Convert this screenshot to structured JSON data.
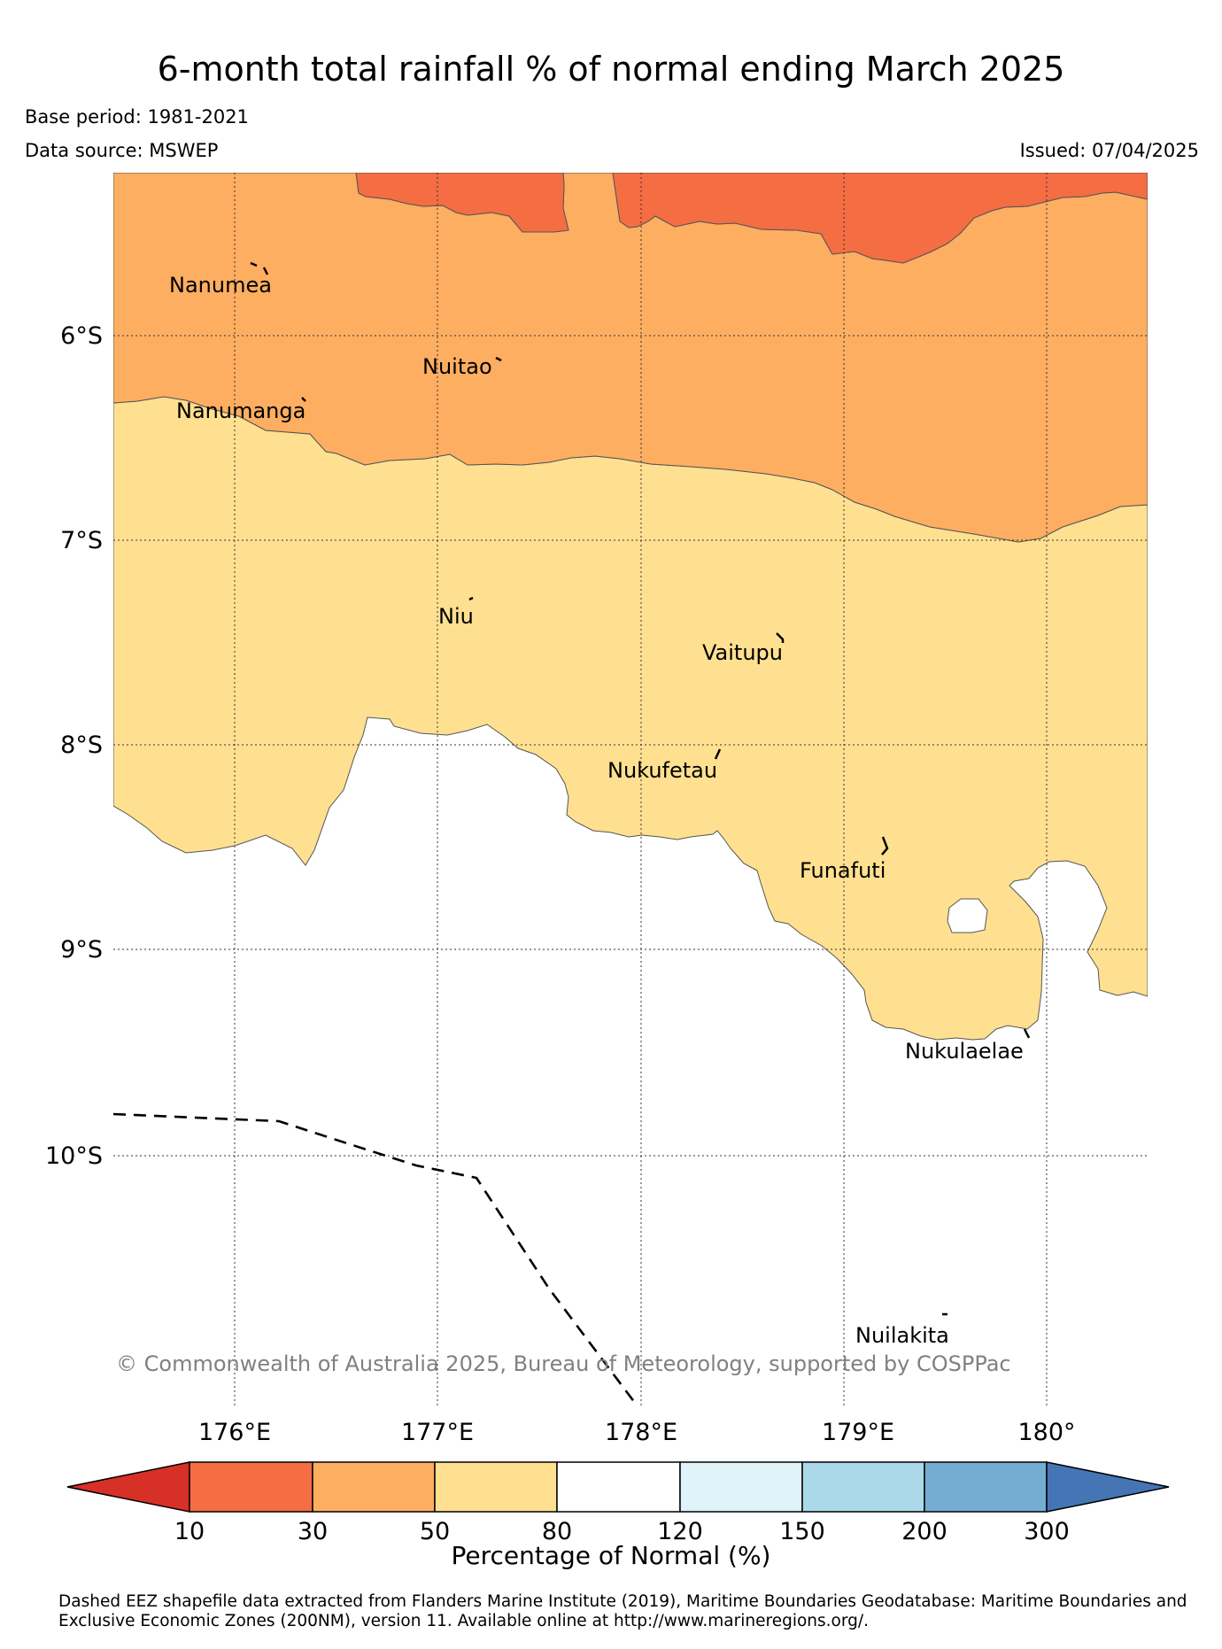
{
  "header": {
    "title": "6-month total rainfall % of normal ending March 2025",
    "base_period": "Base period: 1981-2021",
    "data_source": "Data source: MSWEP",
    "issued": "Issued: 07/04/2025"
  },
  "map": {
    "lat_labels": [
      "6°S",
      "7°S",
      "8°S",
      "9°S",
      "10°S"
    ],
    "lon_labels": [
      "176°E",
      "177°E",
      "178°E",
      "179°E",
      "180°"
    ],
    "islands": [
      "Nanumea",
      "Nuitao",
      "Nanumanga",
      "Niu",
      "Vaitupu",
      "Nukufetau",
      "Funafuti",
      "Nukulaelae",
      "Nuilakita"
    ],
    "copyright": "© Commonwealth of Australia 2025, Bureau of Meteorology, supported by COSPPac",
    "colors": {
      "10-30": "#f46d43",
      "30-50": "#fdae61",
      "50-80": "#fee090",
      "80-120": "#ffffff"
    },
    "eez_boundary_style": "dashed"
  },
  "colorbar": {
    "ticks": [
      "10",
      "30",
      "50",
      "80",
      "120",
      "150",
      "200",
      "300"
    ],
    "colors": [
      "#d73027",
      "#f46d43",
      "#fdae61",
      "#fee090",
      "#ffffff",
      "#e0f3f8",
      "#abd9e9",
      "#74add1",
      "#4575b4"
    ],
    "label": "Percentage of Normal (%)"
  },
  "footnote": "Dashed EEZ shapefile data extracted from Flanders Marine Institute (2019), Maritime Boundaries Geodatabase: Maritime Boundaries and Exclusive Economic Zones (200NM), version 11. Available online at http://www.marineregions.org/."
}
